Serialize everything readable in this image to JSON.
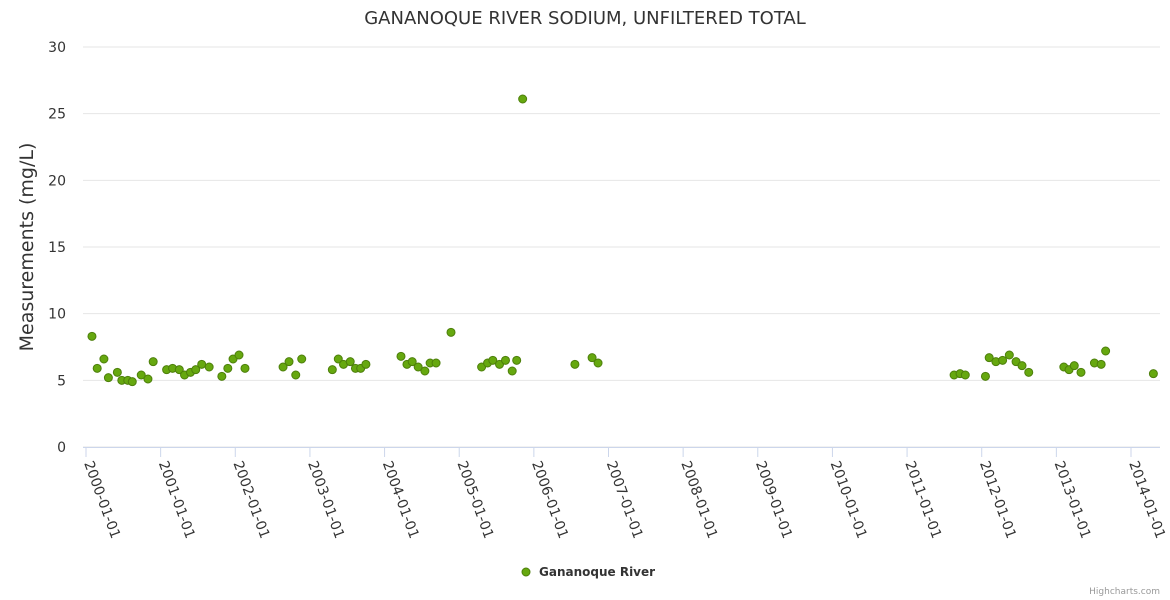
{
  "chart_data": {
    "type": "scatter",
    "title": "GANANOQUE RIVER SODIUM, UNFILTERED TOTAL",
    "xlabel": "",
    "ylabel": "Measurements (mg/L)",
    "ylim": [
      0,
      30
    ],
    "yticks": [
      0,
      5,
      10,
      15,
      20,
      25,
      30
    ],
    "xticks": [
      "2000-01-01",
      "2001-01-01",
      "2002-01-01",
      "2003-01-01",
      "2004-01-01",
      "2005-01-01",
      "2006-01-01",
      "2007-01-01",
      "2008-01-01",
      "2009-01-01",
      "2010-01-01",
      "2011-01-01",
      "2012-01-01",
      "2013-01-01",
      "2014-01-01"
    ],
    "series": [
      {
        "name": "Gananoque River",
        "color": "#66a80f",
        "border": "#4d7f0b",
        "points": [
          [
            2000.08,
            8.3
          ],
          [
            2000.15,
            5.9
          ],
          [
            2000.24,
            6.6
          ],
          [
            2000.3,
            5.2
          ],
          [
            2000.42,
            5.6
          ],
          [
            2000.48,
            5.0
          ],
          [
            2000.56,
            5.0
          ],
          [
            2000.62,
            4.9
          ],
          [
            2000.74,
            5.4
          ],
          [
            2000.83,
            5.1
          ],
          [
            2000.9,
            6.4
          ],
          [
            2001.08,
            5.8
          ],
          [
            2001.16,
            5.9
          ],
          [
            2001.25,
            5.8
          ],
          [
            2001.32,
            5.4
          ],
          [
            2001.4,
            5.6
          ],
          [
            2001.47,
            5.8
          ],
          [
            2001.55,
            6.2
          ],
          [
            2001.65,
            6.0
          ],
          [
            2001.82,
            5.3
          ],
          [
            2001.9,
            5.9
          ],
          [
            2001.97,
            6.6
          ],
          [
            2002.05,
            6.9
          ],
          [
            2002.13,
            5.9
          ],
          [
            2002.64,
            6.0
          ],
          [
            2002.72,
            6.4
          ],
          [
            2002.81,
            5.4
          ],
          [
            2002.89,
            6.6
          ],
          [
            2003.3,
            5.8
          ],
          [
            2003.38,
            6.6
          ],
          [
            2003.45,
            6.2
          ],
          [
            2003.54,
            6.4
          ],
          [
            2003.61,
            5.9
          ],
          [
            2003.68,
            5.9
          ],
          [
            2003.75,
            6.2
          ],
          [
            2004.22,
            6.8
          ],
          [
            2004.3,
            6.2
          ],
          [
            2004.37,
            6.4
          ],
          [
            2004.45,
            6.0
          ],
          [
            2004.54,
            5.7
          ],
          [
            2004.61,
            6.3
          ],
          [
            2004.69,
            6.3
          ],
          [
            2004.89,
            8.6
          ],
          [
            2005.3,
            6.0
          ],
          [
            2005.38,
            6.3
          ],
          [
            2005.45,
            6.5
          ],
          [
            2005.54,
            6.2
          ],
          [
            2005.62,
            6.5
          ],
          [
            2005.71,
            5.7
          ],
          [
            2005.77,
            6.5
          ],
          [
            2005.85,
            26.1
          ],
          [
            2006.55,
            6.2
          ],
          [
            2006.78,
            6.7
          ],
          [
            2006.86,
            6.3
          ],
          [
            2011.63,
            5.4
          ],
          [
            2011.71,
            5.5
          ],
          [
            2011.78,
            5.4
          ],
          [
            2012.05,
            5.3
          ],
          [
            2012.1,
            6.7
          ],
          [
            2012.19,
            6.4
          ],
          [
            2012.28,
            6.5
          ],
          [
            2012.37,
            6.9
          ],
          [
            2012.46,
            6.4
          ],
          [
            2012.54,
            6.1
          ],
          [
            2012.63,
            5.6
          ],
          [
            2013.1,
            6.0
          ],
          [
            2013.17,
            5.8
          ],
          [
            2013.24,
            6.1
          ],
          [
            2013.33,
            5.6
          ],
          [
            2013.51,
            6.3
          ],
          [
            2013.6,
            6.2
          ],
          [
            2013.66,
            7.2
          ],
          [
            2014.3,
            5.5
          ]
        ]
      }
    ],
    "legend": {
      "position": "bottom-center"
    },
    "credits": "Highcharts.com"
  }
}
